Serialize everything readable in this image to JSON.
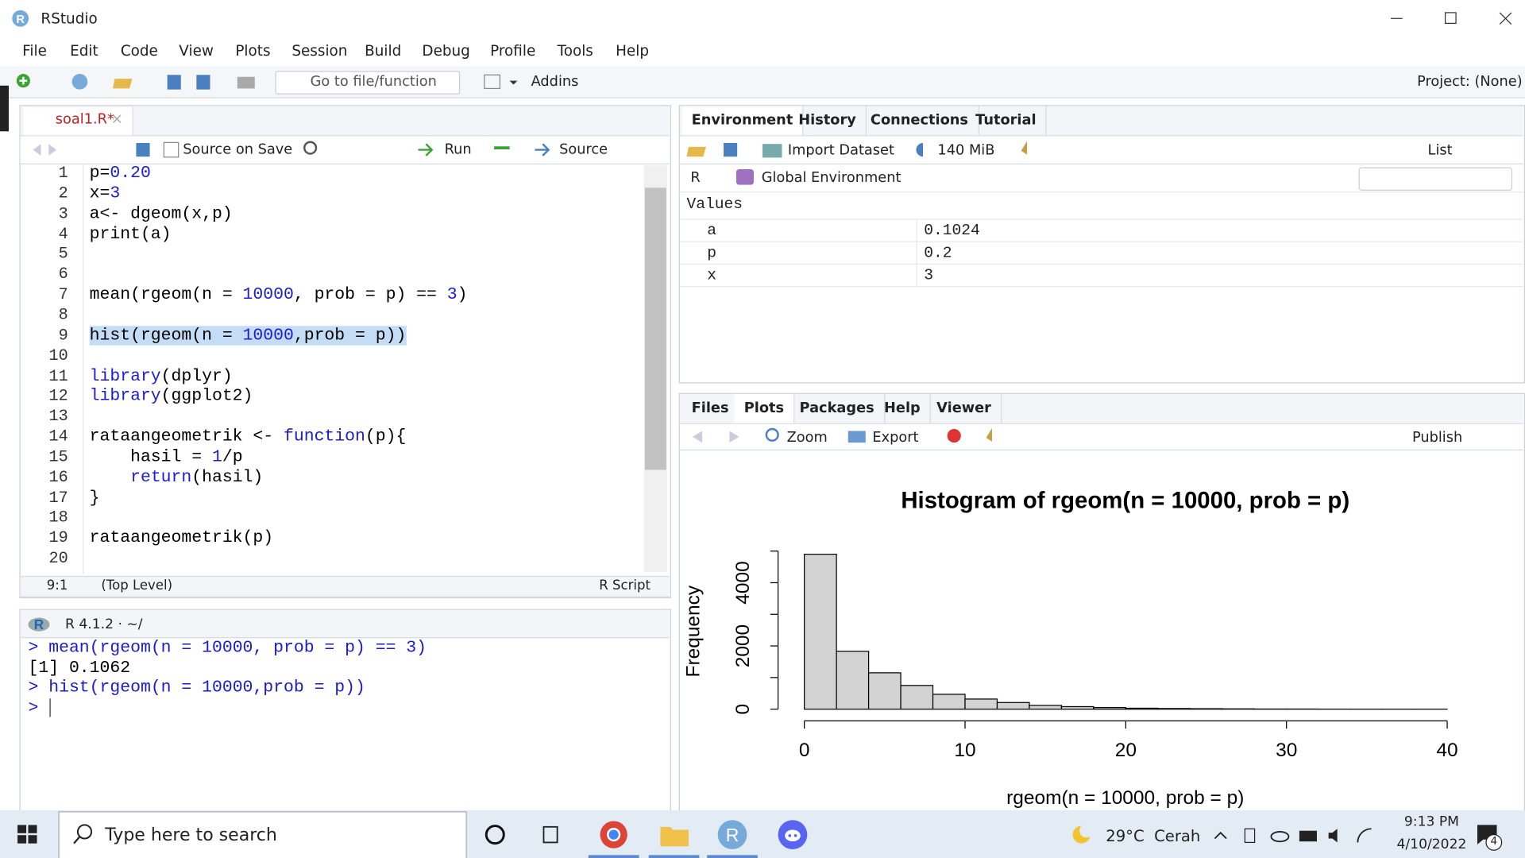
{
  "window": {
    "title": "RStudio"
  },
  "menu": [
    "File",
    "Edit",
    "Code",
    "View",
    "Plots",
    "Session",
    "Build",
    "Debug",
    "Profile",
    "Tools",
    "Help"
  ],
  "toolbar": {
    "goto": "Go to file/function",
    "addins": "Addins",
    "project": "Project: (None)"
  },
  "editor": {
    "tab": "soal1.R*",
    "source_on_save": "Source on Save",
    "run": "Run",
    "source": "Source",
    "selected_line": 9,
    "lines": [
      {
        "n": 1,
        "tokens": [
          [
            "p=",
            "plain"
          ],
          [
            "0.20",
            "num"
          ]
        ]
      },
      {
        "n": 2,
        "tokens": [
          [
            "x=",
            "plain"
          ],
          [
            "3",
            "num"
          ]
        ]
      },
      {
        "n": 3,
        "tokens": [
          [
            "a<- dgeom(x,p)",
            "plain"
          ]
        ]
      },
      {
        "n": 4,
        "tokens": [
          [
            "print(a)",
            "plain"
          ]
        ]
      },
      {
        "n": 5,
        "tokens": []
      },
      {
        "n": 6,
        "tokens": []
      },
      {
        "n": 7,
        "tokens": [
          [
            "mean(rgeom(n = ",
            "plain"
          ],
          [
            "10000",
            "num"
          ],
          [
            ", prob = p) == ",
            "plain"
          ],
          [
            "3",
            "num"
          ],
          [
            ")",
            "plain"
          ]
        ]
      },
      {
        "n": 8,
        "tokens": []
      },
      {
        "n": 9,
        "tokens": [
          [
            "hist(rgeom(n = ",
            "plain"
          ],
          [
            "10000",
            "num"
          ],
          [
            ",prob = p))",
            "plain"
          ]
        ]
      },
      {
        "n": 10,
        "tokens": []
      },
      {
        "n": 11,
        "tokens": [
          [
            "library",
            "fn"
          ],
          [
            "(dplyr)",
            "plain"
          ]
        ]
      },
      {
        "n": 12,
        "tokens": [
          [
            "library",
            "fn"
          ],
          [
            "(ggplot2)",
            "plain"
          ]
        ]
      },
      {
        "n": 13,
        "tokens": []
      },
      {
        "n": 14,
        "tokens": [
          [
            "rataangeometrik <- ",
            "plain"
          ],
          [
            "function",
            "fn"
          ],
          [
            "(p){",
            "plain"
          ]
        ]
      },
      {
        "n": 15,
        "tokens": [
          [
            "    hasil = ",
            "plain"
          ],
          [
            "1",
            "num"
          ],
          [
            "/p",
            "plain"
          ]
        ]
      },
      {
        "n": 16,
        "tokens": [
          [
            "    ",
            "plain"
          ],
          [
            "return",
            "fn"
          ],
          [
            "(hasil)",
            "plain"
          ]
        ]
      },
      {
        "n": 17,
        "tokens": [
          [
            "}",
            "plain"
          ]
        ]
      },
      {
        "n": 18,
        "tokens": []
      },
      {
        "n": 19,
        "tokens": [
          [
            "rataangeometrik(p)",
            "plain"
          ]
        ]
      },
      {
        "n": 20,
        "tokens": []
      }
    ],
    "status": {
      "position": "9:1",
      "scope": "(Top Level)",
      "filetype": "R Script"
    }
  },
  "console": {
    "header": "R 4.1.2 · ~/",
    "lines": [
      [
        "> mean(rgeom(n = 10000, prob = p) == 3)",
        "input"
      ],
      [
        "[1] 0.1062",
        "output"
      ],
      [
        "> hist(rgeom(n = 10000,prob = p))",
        "input"
      ],
      [
        ">",
        "input"
      ]
    ]
  },
  "environment": {
    "tabs": [
      "Environment",
      "History",
      "Connections",
      "Tutorial"
    ],
    "active_tab": 0,
    "import": "Import Dataset",
    "memory": "140 MiB",
    "view": "List",
    "language": "R",
    "scope": "Global Environment",
    "section": "Values",
    "rows": [
      [
        "a",
        "0.1024"
      ],
      [
        "p",
        "0.2"
      ],
      [
        "x",
        "3"
      ]
    ]
  },
  "files": {
    "tabs": [
      "Files",
      "Plots",
      "Packages",
      "Help",
      "Viewer"
    ],
    "active_tab": 1,
    "zoom": "Zoom",
    "export": "Export",
    "publish": "Publish"
  },
  "taskbar": {
    "search": "Type here to search",
    "weather": "29°C  Cerah",
    "time": "9:13 PM",
    "date": "4/10/2022",
    "notifications": "4"
  },
  "chart_data": {
    "type": "histogram",
    "title": "Histogram of rgeom(n = 10000, prob = p)",
    "xlabel": "rgeom(n = 10000, prob = p)",
    "ylabel": "Frequency",
    "bins": [
      0,
      2,
      4,
      6,
      8,
      10,
      12,
      14,
      16,
      18,
      20,
      22,
      24,
      26,
      28,
      30,
      32,
      34,
      36,
      38,
      40
    ],
    "values": [
      4900,
      1830,
      1150,
      750,
      470,
      320,
      210,
      120,
      80,
      50,
      30,
      20,
      15,
      10,
      5,
      4,
      2,
      1,
      1,
      1
    ],
    "color": "#d3d3d3",
    "xlim": [
      0,
      40
    ],
    "xticks": [
      0,
      10,
      20,
      30,
      40
    ],
    "ylim": [
      0,
      5000
    ],
    "yticks": [
      0,
      2000,
      4000
    ],
    "yminorticks": [
      1000,
      3000,
      5000
    ]
  }
}
